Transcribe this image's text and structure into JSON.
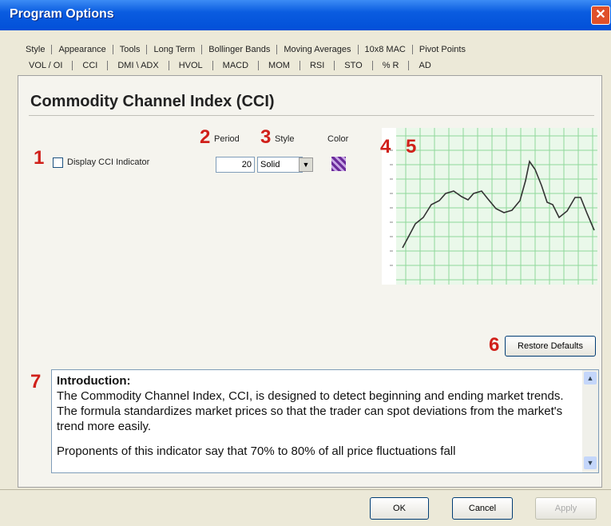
{
  "window": {
    "title": "Program Options"
  },
  "tabs": {
    "row1": [
      "Style",
      "Appearance",
      "Tools",
      "Long Term",
      "Bollinger Bands",
      "Moving Averages",
      "10x8 MAC",
      "Pivot Points"
    ],
    "row2": [
      "VOL / OI",
      "CCI",
      "DMI \\ ADX",
      "HVOL",
      "MACD",
      "MOM",
      "RSI",
      "STO",
      "% R",
      "AD"
    ]
  },
  "panel": {
    "heading": "Commodity Channel Index (CCI)",
    "callouts": [
      "1",
      "2",
      "3",
      "4",
      "5",
      "6",
      "7"
    ],
    "display_checkbox": "Display CCI Indicator",
    "period_label": "Period",
    "period_value": "20",
    "style_label": "Style",
    "style_value": "Solid",
    "color_label": "Color",
    "restore_button": "Restore Defaults",
    "description": {
      "heading": "Introduction:",
      "paragraphs": [
        "The Commodity Channel Index, CCI, is designed to detect beginning and ending market trends. The formula standardizes market prices so that the trader can spot deviations from the market's trend more easily.",
        "Proponents of this indicator say that 70% to 80% of all price fluctuations fall"
      ]
    }
  },
  "buttons": {
    "ok": "OK",
    "cancel": "Cancel",
    "apply": "Apply"
  }
}
